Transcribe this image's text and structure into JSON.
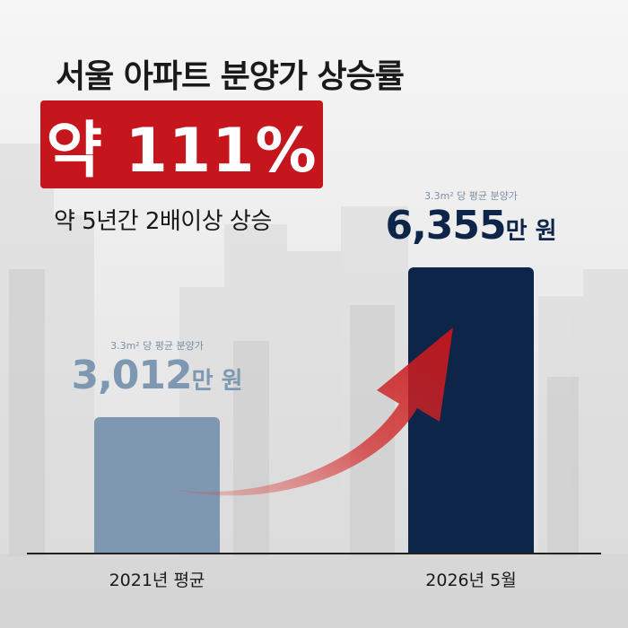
{
  "header": {
    "title": "서울 아파트 분양가 상승률",
    "highlight": "약 111%",
    "subtitle": "약 5년간 2배이상 상승"
  },
  "colors": {
    "accent_red": "#c4161c",
    "bar_2021": "#7f98b1",
    "bar_2026": "#0d2548"
  },
  "chart_data": {
    "type": "bar",
    "title": "서울 아파트 분양가 상승률",
    "categories": [
      "2021년 평균",
      "2026년 5월"
    ],
    "values": [
      3012,
      6355
    ],
    "value_labels": [
      "3,012",
      "6,355"
    ],
    "value_unit": "만 원",
    "unit_caption": "3.3m² 당 평균 분양가",
    "ylim": [
      0,
      6800
    ],
    "grid": false,
    "annotation": "red rising arrow from 2021 bar to 2026 bar"
  }
}
